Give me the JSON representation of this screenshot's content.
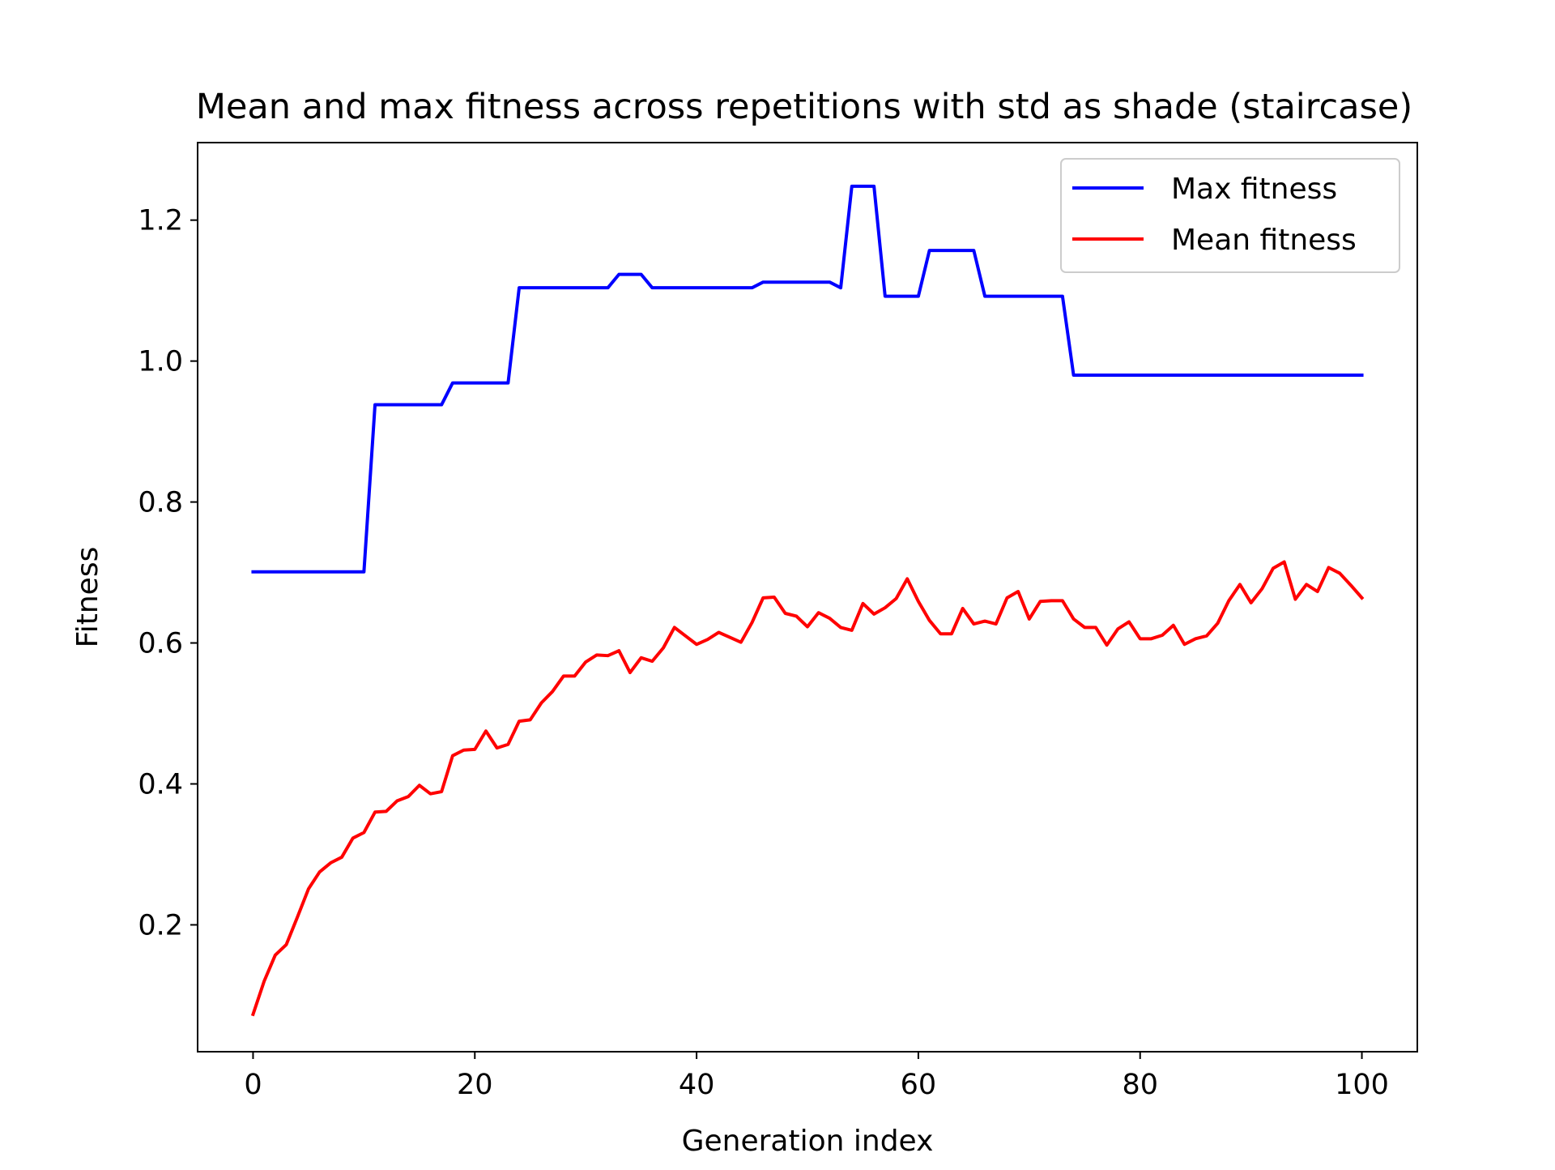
{
  "chart_data": {
    "type": "line",
    "title": "Mean and max fitness across repetitions with std as shade (staircase)",
    "xlabel": "Generation index",
    "ylabel": "Fitness",
    "xlim": [
      -5,
      105
    ],
    "ylim": [
      0.02,
      1.31
    ],
    "xticks": [
      0,
      20,
      40,
      60,
      80,
      100
    ],
    "yticks": [
      0.2,
      0.4,
      0.6,
      0.8,
      1.0,
      1.2
    ],
    "xtick_labels": [
      "0",
      "20",
      "40",
      "60",
      "80",
      "100"
    ],
    "ytick_labels": [
      "0.2",
      "0.4",
      "0.6",
      "0.8",
      "1.0",
      "1.2"
    ],
    "grid": false,
    "legend_position": "top-right",
    "x": [
      0,
      1,
      2,
      3,
      4,
      5,
      6,
      7,
      8,
      9,
      10,
      11,
      12,
      13,
      14,
      15,
      16,
      17,
      18,
      19,
      20,
      21,
      22,
      23,
      24,
      25,
      26,
      27,
      28,
      29,
      30,
      31,
      32,
      33,
      34,
      35,
      36,
      37,
      38,
      39,
      40,
      41,
      42,
      43,
      44,
      45,
      46,
      47,
      48,
      49,
      50,
      51,
      52,
      53,
      54,
      55,
      56,
      57,
      58,
      59,
      60,
      61,
      62,
      63,
      64,
      65,
      66,
      67,
      68,
      69,
      70,
      71,
      72,
      73,
      74,
      75,
      76,
      77,
      78,
      79,
      80,
      81,
      82,
      83,
      84,
      85,
      86,
      87,
      88,
      89,
      90,
      91,
      92,
      93,
      94,
      95,
      96,
      97,
      98,
      99,
      100
    ],
    "series": [
      {
        "name": "Max fitness",
        "color": "#0000ff",
        "values": [
          0.701,
          0.701,
          0.701,
          0.701,
          0.701,
          0.701,
          0.701,
          0.701,
          0.701,
          0.701,
          0.701,
          0.938,
          0.938,
          0.938,
          0.938,
          0.938,
          0.938,
          0.938,
          0.969,
          0.969,
          0.969,
          0.969,
          0.969,
          0.969,
          1.104,
          1.104,
          1.104,
          1.104,
          1.104,
          1.104,
          1.104,
          1.104,
          1.104,
          1.123,
          1.123,
          1.123,
          1.104,
          1.104,
          1.104,
          1.104,
          1.104,
          1.104,
          1.104,
          1.104,
          1.104,
          1.104,
          1.112,
          1.112,
          1.112,
          1.112,
          1.112,
          1.112,
          1.112,
          1.104,
          1.248,
          1.248,
          1.248,
          1.092,
          1.092,
          1.092,
          1.092,
          1.157,
          1.157,
          1.157,
          1.157,
          1.157,
          1.092,
          1.092,
          1.092,
          1.092,
          1.092,
          1.092,
          1.092,
          1.092,
          0.98,
          0.98,
          0.98,
          0.98,
          0.98,
          0.98,
          0.98,
          0.98,
          0.98,
          0.98,
          0.98,
          0.98,
          0.98,
          0.98,
          0.98,
          0.98,
          0.98,
          0.98,
          0.98,
          0.98,
          0.98,
          0.98,
          0.98,
          0.98,
          0.98,
          0.98,
          0.98
        ]
      },
      {
        "name": "Mean fitness",
        "color": "#ff0000",
        "values": [
          0.073,
          0.12,
          0.157,
          0.172,
          0.211,
          0.251,
          0.275,
          0.288,
          0.296,
          0.323,
          0.331,
          0.36,
          0.361,
          0.376,
          0.382,
          0.398,
          0.386,
          0.389,
          0.44,
          0.448,
          0.449,
          0.475,
          0.451,
          0.456,
          0.489,
          0.491,
          0.515,
          0.531,
          0.553,
          0.553,
          0.573,
          0.583,
          0.582,
          0.589,
          0.558,
          0.579,
          0.574,
          0.593,
          0.622,
          0.61,
          0.598,
          0.605,
          0.615,
          0.608,
          0.601,
          0.629,
          0.664,
          0.665,
          0.642,
          0.638,
          0.623,
          0.643,
          0.635,
          0.622,
          0.618,
          0.656,
          0.641,
          0.65,
          0.663,
          0.691,
          0.659,
          0.632,
          0.613,
          0.613,
          0.649,
          0.627,
          0.631,
          0.627,
          0.664,
          0.673,
          0.634,
          0.659,
          0.66,
          0.66,
          0.634,
          0.622,
          0.622,
          0.597,
          0.62,
          0.63,
          0.606,
          0.606,
          0.611,
          0.625,
          0.598,
          0.606,
          0.61,
          0.628,
          0.66,
          0.683,
          0.657,
          0.677,
          0.706,
          0.715,
          0.662,
          0.683,
          0.673,
          0.707,
          0.699,
          0.682,
          0.664
        ]
      }
    ]
  }
}
